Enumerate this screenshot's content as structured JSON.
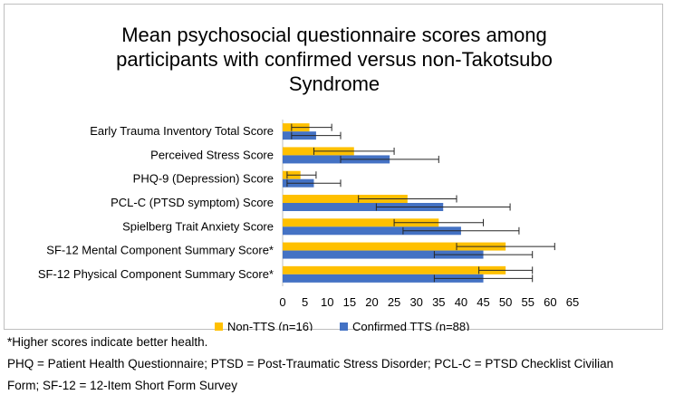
{
  "chart_data": {
    "type": "bar",
    "orientation": "horizontal",
    "title": "Mean psychosocial questionnaire scores among participants with confirmed versus non-Takotsubo Syndrome",
    "title_lines": [
      "Mean psychosocial questionnaire scores among",
      "participants with confirmed versus non-Takotsubo",
      "Syndrome"
    ],
    "categories": [
      "Early Trauma Inventory Total Score",
      "Perceived Stress Score",
      "PHQ-9 (Depression) Score",
      "PCL-C (PTSD symptom) Score",
      "Spielberg Trait Anxiety Score",
      "SF-12 Mental Component Summary Score*",
      "SF-12 Physical Component Summary Score*"
    ],
    "series": [
      {
        "name": "Non-TTS (n=16)",
        "color": "#FFC000",
        "values": [
          6,
          16,
          4,
          28,
          35,
          50,
          50
        ],
        "error_low": [
          2,
          7,
          1,
          17,
          25,
          39,
          44
        ],
        "error_high": [
          11,
          25,
          7.5,
          39,
          45,
          61,
          56
        ]
      },
      {
        "name": "Confirmed TTS (n=88)",
        "color": "#4472C4",
        "values": [
          7.5,
          24,
          7,
          36,
          40,
          45,
          45
        ],
        "error_low": [
          2,
          13,
          1,
          21,
          27,
          34,
          34
        ],
        "error_high": [
          13,
          35,
          13,
          51,
          53,
          56,
          56
        ]
      }
    ],
    "xlim": [
      0,
      65
    ],
    "xticks": [
      0,
      5,
      10,
      15,
      20,
      25,
      30,
      35,
      40,
      45,
      50,
      55,
      60,
      65
    ],
    "xlabel": "",
    "ylabel": "",
    "legend_position": "bottom",
    "grid": false
  },
  "footnotes": {
    "line1": "*Higher scores indicate better health.",
    "line2": "PHQ = Patient Health Questionnaire; PTSD = Post-Traumatic Stress Disorder; PCL-C = PTSD Checklist Civilian",
    "line3": "Form; SF-12 = 12-Item Short Form Survey"
  }
}
